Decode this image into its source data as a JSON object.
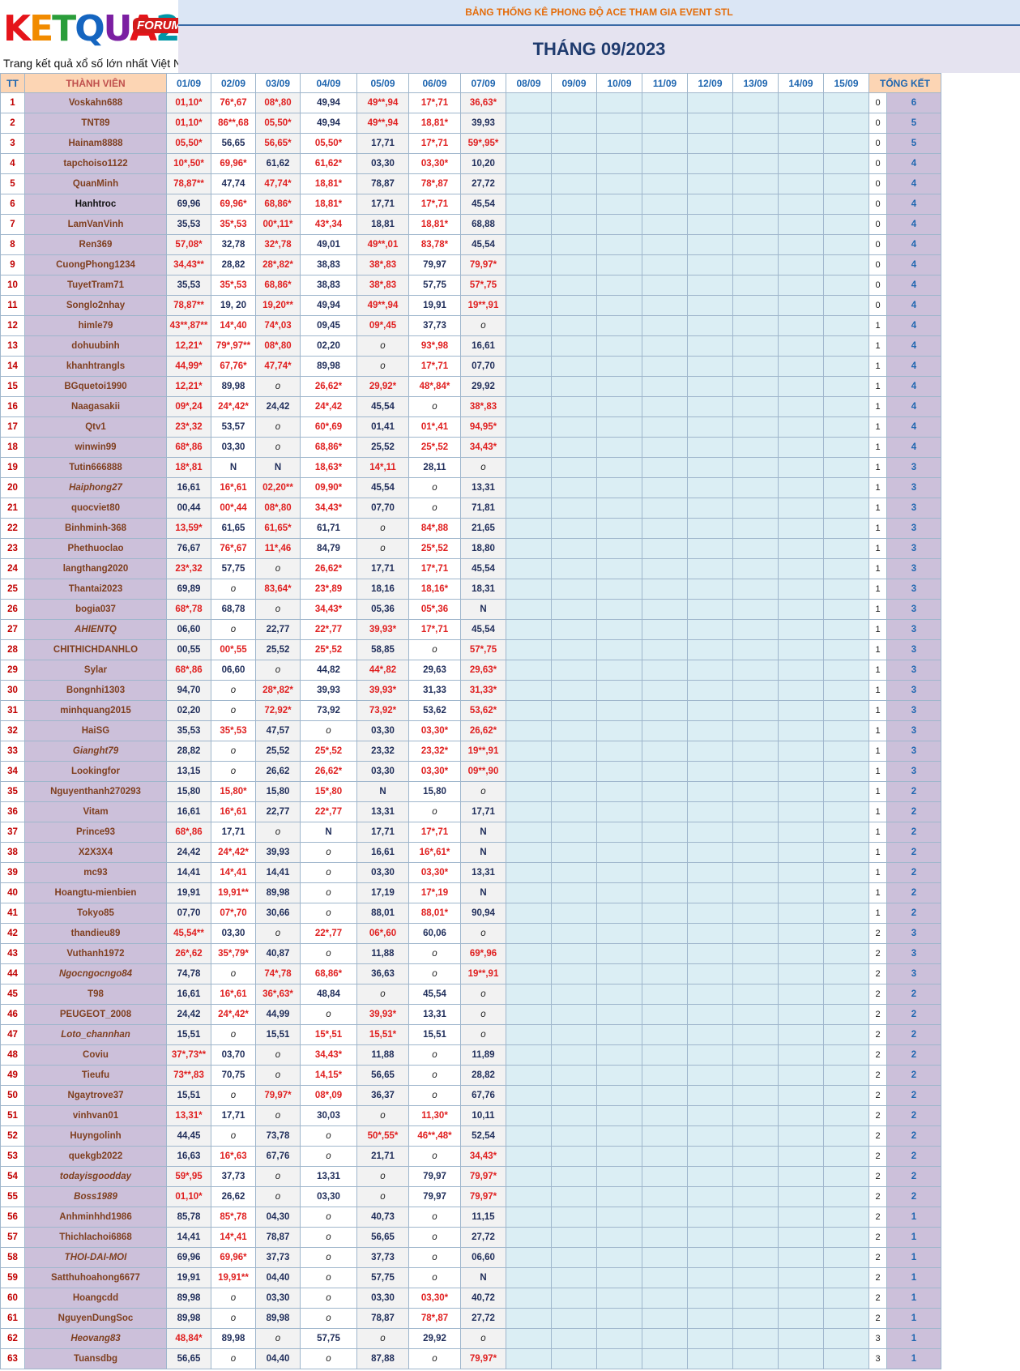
{
  "logo": {
    "brand": "KETQUA2",
    "forum": "FORUM",
    "slogan": "Trang kết quả xổ số lớn nhất Việt Nam"
  },
  "banner": "BẢNG THỐNG KÊ PHONG ĐỘ ACE THAM GIA EVENT STL",
  "month": "THÁNG 09/2023",
  "headers": {
    "tt": "TT",
    "member": "THÀNH VIÊN",
    "dates": [
      "01/09",
      "02/09",
      "03/09",
      "04/09",
      "05/09",
      "06/09",
      "07/09",
      "08/09",
      "09/09",
      "10/09",
      "11/09",
      "12/09",
      "13/09",
      "14/09",
      "15/09"
    ],
    "total": "TỔNG KẾT"
  },
  "rows": [
    {
      "tt": "1",
      "name": "Voskahn688",
      "cells": [
        "01,10*",
        "76*,67",
        "08*,80",
        "49,94",
        "49**,94",
        "17*,71",
        "36,63*"
      ],
      "s1": "0",
      "s2": "6"
    },
    {
      "tt": "2",
      "name": "TNT89",
      "cells": [
        "01,10*",
        "86**,68",
        "05,50*",
        "49,94",
        "49**,94",
        "18,81*",
        "39,93"
      ],
      "s1": "0",
      "s2": "5"
    },
    {
      "tt": "3",
      "name": "Hainam8888",
      "cells": [
        "05,50*",
        "56,65",
        "56,65*",
        "05,50*",
        "17,71",
        "17*,71",
        "59*,95*"
      ],
      "s1": "0",
      "s2": "5"
    },
    {
      "tt": "4",
      "name": "tapchoiso1122",
      "cells": [
        "10*,50*",
        "69,96*",
        "61,62",
        "61,62*",
        "03,30",
        "03,30*",
        "10,20"
      ],
      "s1": "0",
      "s2": "4"
    },
    {
      "tt": "5",
      "name": "QuanMinh",
      "cells": [
        "78,87**",
        "47,74",
        "47,74*",
        "18,81*",
        "78,87",
        "78*,87",
        "27,72"
      ],
      "s1": "0",
      "s2": "4"
    },
    {
      "tt": "6",
      "name": "Hanhtroc",
      "cells": [
        "69,96",
        "69,96*",
        "68,86*",
        "18,81*",
        "17,71",
        "17*,71",
        "45,54"
      ],
      "s1": "0",
      "s2": "4"
    },
    {
      "tt": "7",
      "name": "LamVanVinh",
      "cells": [
        "35,53",
        "35*,53",
        "00*,11*",
        "43*,34",
        "18,81",
        "18,81*",
        "68,88"
      ],
      "s1": "0",
      "s2": "4"
    },
    {
      "tt": "8",
      "name": "Ren369",
      "cells": [
        "57,08*",
        "32,78",
        "32*,78",
        "49,01",
        "49**,01",
        "83,78*",
        "45,54"
      ],
      "s1": "0",
      "s2": "4"
    },
    {
      "tt": "9",
      "name": "CuongPhong1234",
      "cells": [
        "34,43**",
        "28,82",
        "28*,82*",
        "38,83",
        "38*,83",
        "79,97",
        "79,97*"
      ],
      "s1": "0",
      "s2": "4"
    },
    {
      "tt": "10",
      "name": "TuyetTram71",
      "cells": [
        "35,53",
        "35*,53",
        "68,86*",
        "38,83",
        "38*,83",
        "57,75",
        "57*,75"
      ],
      "s1": "0",
      "s2": "4"
    },
    {
      "tt": "11",
      "name": "Songlo2nhay",
      "cells": [
        "78,87**",
        "19, 20",
        "19,20**",
        "49,94",
        "49**,94",
        "19,91",
        "19**,91"
      ],
      "s1": "0",
      "s2": "4"
    },
    {
      "tt": "12",
      "name": "himle79",
      "cells": [
        "43**,87**",
        "14*,40",
        "74*,03",
        "09,45",
        "09*,45",
        "37,73",
        "o"
      ],
      "s1": "1",
      "s2": "4"
    },
    {
      "tt": "13",
      "name": "dohuubinh",
      "cells": [
        "12,21*",
        "79*,97**",
        "08*,80",
        "02,20",
        "o",
        "93*,98",
        "16,61"
      ],
      "s1": "1",
      "s2": "4"
    },
    {
      "tt": "14",
      "name": "khanhtrangls",
      "cells": [
        "44,99*",
        "67,76*",
        "47,74*",
        "89,98",
        "o",
        "17*,71",
        "07,70"
      ],
      "s1": "1",
      "s2": "4"
    },
    {
      "tt": "15",
      "name": "BGquetoi1990",
      "cells": [
        "12,21*",
        "89,98",
        "o",
        "26,62*",
        "29,92*",
        "48*,84*",
        "29,92"
      ],
      "s1": "1",
      "s2": "4"
    },
    {
      "tt": "16",
      "name": "Naagasakii",
      "cells": [
        "09*,24",
        "24*,42*",
        "24,42",
        "24*,42",
        "45,54",
        "o",
        "38*,83"
      ],
      "s1": "1",
      "s2": "4"
    },
    {
      "tt": "17",
      "name": "Qtv1",
      "cells": [
        "23*,32",
        "53,57",
        "o",
        "60*,69",
        "01,41",
        "01*,41",
        "94,95*"
      ],
      "s1": "1",
      "s2": "4"
    },
    {
      "tt": "18",
      "name": "winwin99",
      "cells": [
        "68*,86",
        "03,30",
        "o",
        "68,86*",
        "25,52",
        "25*,52",
        "34,43*"
      ],
      "s1": "1",
      "s2": "4"
    },
    {
      "tt": "19",
      "name": "Tutin666888",
      "cells": [
        "18*,81",
        "N",
        "N",
        "18,63*",
        "14*,11",
        "28,11",
        "o"
      ],
      "s1": "1",
      "s2": "3"
    },
    {
      "tt": "20",
      "name": "Haiphong27",
      "cells": [
        "16,61",
        "16*,61",
        "02,20**",
        "09,90*",
        "45,54",
        "o",
        "13,31"
      ],
      "s1": "1",
      "s2": "3"
    },
    {
      "tt": "21",
      "name": "quocviet80",
      "cells": [
        "00,44",
        "00*,44",
        "08*,80",
        "34,43*",
        "07,70",
        "o",
        "71,81"
      ],
      "s1": "1",
      "s2": "3"
    },
    {
      "tt": "22",
      "name": "Binhminh-368",
      "cells": [
        "13,59*",
        "61,65",
        "61,65*",
        "61,71",
        "o",
        "84*,88",
        "21,65"
      ],
      "s1": "1",
      "s2": "3"
    },
    {
      "tt": "23",
      "name": "Phethuoclao",
      "cells": [
        "76,67",
        "76*,67",
        "11*,46",
        "84,79",
        "o",
        "25*,52",
        "18,80"
      ],
      "s1": "1",
      "s2": "3"
    },
    {
      "tt": "24",
      "name": "langthang2020",
      "cells": [
        "23*,32",
        "57,75",
        "o",
        "26,62*",
        "17,71",
        "17*,71",
        "45,54"
      ],
      "s1": "1",
      "s2": "3"
    },
    {
      "tt": "25",
      "name": "Thantai2023",
      "cells": [
        "69,89",
        "o",
        "83,64*",
        "23*,89",
        "18,16",
        "18,16*",
        "18,31"
      ],
      "s1": "1",
      "s2": "3"
    },
    {
      "tt": "26",
      "name": "bogia037",
      "cells": [
        "68*,78",
        "68,78",
        "o",
        "34,43*",
        "05,36",
        "05*,36",
        "N"
      ],
      "s1": "1",
      "s2": "3"
    },
    {
      "tt": "27",
      "name": "AHIENTQ",
      "cells": [
        "06,60",
        "o",
        "22,77",
        "22*,77",
        "39,93*",
        "17*,71",
        "45,54"
      ],
      "s1": "1",
      "s2": "3"
    },
    {
      "tt": "28",
      "name": "CHITHICHDANHLO",
      "cells": [
        "00,55",
        "00*,55",
        "25,52",
        "25*,52",
        "58,85",
        "o",
        "57*,75"
      ],
      "s1": "1",
      "s2": "3"
    },
    {
      "tt": "29",
      "name": "Sylar",
      "cells": [
        "68*,86",
        "06,60",
        "o",
        "44,82",
        "44*,82",
        "29,63",
        "29,63*"
      ],
      "s1": "1",
      "s2": "3"
    },
    {
      "tt": "30",
      "name": "Bongnhi1303",
      "cells": [
        "94,70",
        "o",
        "28*,82*",
        "39,93",
        "39,93*",
        "31,33",
        "31,33*"
      ],
      "s1": "1",
      "s2": "3"
    },
    {
      "tt": "31",
      "name": "minhquang2015",
      "cells": [
        "02,20",
        "o",
        "72,92*",
        "73,92",
        "73,92*",
        "53,62",
        "53,62*"
      ],
      "s1": "1",
      "s2": "3"
    },
    {
      "tt": "32",
      "name": "HaiSG",
      "cells": [
        "35,53",
        "35*,53",
        "47,57",
        "o",
        "03,30",
        "03,30*",
        "26,62*"
      ],
      "s1": "1",
      "s2": "3"
    },
    {
      "tt": "33",
      "name": "Gianght79",
      "cells": [
        "28,82",
        "o",
        "25,52",
        "25*,52",
        "23,32",
        "23,32*",
        "19**,91"
      ],
      "s1": "1",
      "s2": "3"
    },
    {
      "tt": "34",
      "name": "Lookingfor",
      "cells": [
        "13,15",
        "o",
        "26,62",
        "26,62*",
        "03,30",
        "03,30*",
        "09**,90"
      ],
      "s1": "1",
      "s2": "3"
    },
    {
      "tt": "35",
      "name": "Nguyenthanh270293",
      "cells": [
        "15,80",
        "15,80*",
        "15,80",
        "15*,80",
        "N",
        "15,80",
        "o"
      ],
      "s1": "1",
      "s2": "2"
    },
    {
      "tt": "36",
      "name": "Vitam",
      "cells": [
        "16,61",
        "16*,61",
        "22,77",
        "22*,77",
        "13,31",
        "o",
        "17,71"
      ],
      "s1": "1",
      "s2": "2"
    },
    {
      "tt": "37",
      "name": "Prince93",
      "cells": [
        "68*,86",
        "17,71",
        "o",
        "N",
        "17,71",
        "17*,71",
        "N"
      ],
      "s1": "1",
      "s2": "2"
    },
    {
      "tt": "38",
      "name": "X2X3X4",
      "cells": [
        "24,42",
        "24*,42*",
        "39,93",
        "o",
        "16,61",
        "16*,61*",
        "N"
      ],
      "s1": "1",
      "s2": "2"
    },
    {
      "tt": "39",
      "name": "mc93",
      "cells": [
        "14,41",
        "14*,41",
        "14,41",
        "o",
        "03,30",
        "03,30*",
        "13,31"
      ],
      "s1": "1",
      "s2": "2"
    },
    {
      "tt": "40",
      "name": "Hoangtu-mienbien",
      "cells": [
        "19,91",
        "19,91**",
        "89,98",
        "o",
        "17,19",
        "17*,19",
        "N"
      ],
      "s1": "1",
      "s2": "2"
    },
    {
      "tt": "41",
      "name": "Tokyo85",
      "cells": [
        "07,70",
        "07*,70",
        "30,66",
        "o",
        "88,01",
        "88,01*",
        "90,94"
      ],
      "s1": "1",
      "s2": "2"
    },
    {
      "tt": "42",
      "name": "thandieu89",
      "cells": [
        "45,54**",
        "03,30",
        "o",
        "22*,77",
        "06*,60",
        "60,06",
        "o"
      ],
      "s1": "2",
      "s2": "3"
    },
    {
      "tt": "43",
      "name": "Vuthanh1972",
      "cells": [
        "26*,62",
        "35*,79*",
        "40,87",
        "o",
        "11,88",
        "o",
        "69*,96"
      ],
      "s1": "2",
      "s2": "3"
    },
    {
      "tt": "44",
      "name": "Ngocngocngo84",
      "cells": [
        "74,78",
        "o",
        "74*,78",
        "68,86*",
        "36,63",
        "o",
        "19**,91"
      ],
      "s1": "2",
      "s2": "3"
    },
    {
      "tt": "45",
      "name": "T98",
      "cells": [
        "16,61",
        "16*,61",
        "36*,63*",
        "48,84",
        "o",
        "45,54",
        "o"
      ],
      "s1": "2",
      "s2": "2"
    },
    {
      "tt": "46",
      "name": "PEUGEOT_2008",
      "cells": [
        "24,42",
        "24*,42*",
        "44,99",
        "o",
        "39,93*",
        "13,31",
        "o"
      ],
      "s1": "2",
      "s2": "2"
    },
    {
      "tt": "47",
      "name": "Loto_channhan",
      "cells": [
        "15,51",
        "o",
        "15,51",
        "15*,51",
        "15,51*",
        "15,51",
        "o"
      ],
      "s1": "2",
      "s2": "2"
    },
    {
      "tt": "48",
      "name": "Coviu",
      "cells": [
        "37*,73**",
        "03,70",
        "o",
        "34,43*",
        "11,88",
        "o",
        "11,89"
      ],
      "s1": "2",
      "s2": "2"
    },
    {
      "tt": "49",
      "name": "Tieufu",
      "cells": [
        "73**,83",
        "70,75",
        "o",
        "14,15*",
        "56,65",
        "o",
        "28,82"
      ],
      "s1": "2",
      "s2": "2"
    },
    {
      "tt": "50",
      "name": "Ngaytrove37",
      "cells": [
        "15,51",
        "o",
        "79,97*",
        "08*,09",
        "36,37",
        "o",
        "67,76"
      ],
      "s1": "2",
      "s2": "2"
    },
    {
      "tt": "51",
      "name": "vinhvan01",
      "cells": [
        "13,31*",
        "17,71",
        "o",
        "30,03",
        "o",
        "11,30*",
        "10,11"
      ],
      "s1": "2",
      "s2": "2"
    },
    {
      "tt": "52",
      "name": "Huyngolinh",
      "cells": [
        "44,45",
        "o",
        "73,78",
        "o",
        "50*,55*",
        "46**,48*",
        "52,54"
      ],
      "s1": "2",
      "s2": "2"
    },
    {
      "tt": "53",
      "name": "quekgb2022",
      "cells": [
        "16,63",
        "16*,63",
        "67,76",
        "o",
        "21,71",
        "o",
        "34,43*"
      ],
      "s1": "2",
      "s2": "2"
    },
    {
      "tt": "54",
      "name": "todayisgoodday",
      "cells": [
        "59*,95",
        "37,73",
        "o",
        "13,31",
        "o",
        "79,97",
        "79,97*"
      ],
      "s1": "2",
      "s2": "2"
    },
    {
      "tt": "55",
      "name": "Boss1989",
      "cells": [
        "01,10*",
        "26,62",
        "o",
        "03,30",
        "o",
        "79,97",
        "79,97*"
      ],
      "s1": "2",
      "s2": "2"
    },
    {
      "tt": "56",
      "name": "Anhminhhd1986",
      "cells": [
        "85,78",
        "85*,78",
        "04,30",
        "o",
        "40,73",
        "o",
        "11,15"
      ],
      "s1": "2",
      "s2": "1"
    },
    {
      "tt": "57",
      "name": "Thichlachoi6868",
      "cells": [
        "14,41",
        "14*,41",
        "78,87",
        "o",
        "56,65",
        "o",
        "27,72"
      ],
      "s1": "2",
      "s2": "1"
    },
    {
      "tt": "58",
      "name": "THOI-DAI-MOI",
      "cells": [
        "69,96",
        "69,96*",
        "37,73",
        "o",
        "37,73",
        "o",
        "06,60"
      ],
      "s1": "2",
      "s2": "1"
    },
    {
      "tt": "59",
      "name": "Satthuhoahong6677",
      "cells": [
        "19,91",
        "19,91**",
        "04,40",
        "o",
        "57,75",
        "o",
        "N"
      ],
      "s1": "2",
      "s2": "1"
    },
    {
      "tt": "60",
      "name": "Hoangcdd",
      "cells": [
        "89,98",
        "o",
        "03,30",
        "o",
        "03,30",
        "03,30*",
        "40,72"
      ],
      "s1": "2",
      "s2": "1"
    },
    {
      "tt": "61",
      "name": "NguyenDungSoc",
      "cells": [
        "89,98",
        "o",
        "89,98",
        "o",
        "78,87",
        "78*,87",
        "27,72"
      ],
      "s1": "2",
      "s2": "1"
    },
    {
      "tt": "62",
      "name": "Heovang83",
      "cells": [
        "48,84*",
        "89,98",
        "o",
        "57,75",
        "o",
        "29,92",
        "o"
      ],
      "s1": "3",
      "s2": "1"
    },
    {
      "tt": "63",
      "name": "Tuansdbg",
      "cells": [
        "56,65",
        "o",
        "04,40",
        "o",
        "87,88",
        "o",
        "79,97*"
      ],
      "s1": "3",
      "s2": "1"
    }
  ]
}
